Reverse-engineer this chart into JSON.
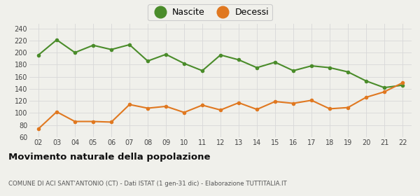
{
  "years": [
    "02",
    "03",
    "04",
    "05",
    "06",
    "07",
    "08",
    "09",
    "10",
    "11",
    "12",
    "13",
    "14",
    "15",
    "16",
    "17",
    "18",
    "19",
    "20",
    "21",
    "22"
  ],
  "nascite": [
    196,
    221,
    200,
    212,
    205,
    213,
    186,
    197,
    182,
    170,
    196,
    188,
    175,
    184,
    170,
    178,
    175,
    168,
    153,
    142,
    146
  ],
  "decessi": [
    74,
    102,
    86,
    86,
    85,
    114,
    108,
    111,
    101,
    113,
    105,
    117,
    106,
    119,
    116,
    121,
    107,
    109,
    126,
    135,
    150
  ],
  "nascite_color": "#4a8c2a",
  "decessi_color": "#e07820",
  "background_color": "#f0f0eb",
  "grid_color": "#d8d8d8",
  "title": "Movimento naturale della popolazione",
  "subtitle": "COMUNE DI ACI SANT'ANTONIO (CT) - Dati ISTAT (1 gen-31 dic) - Elaborazione TUTTITALIA.IT",
  "legend_nascite": "Nascite",
  "legend_decessi": "Decessi",
  "ylim": [
    60,
    248
  ],
  "yticks": [
    60,
    80,
    100,
    120,
    140,
    160,
    180,
    200,
    220,
    240
  ],
  "marker_size": 4,
  "line_width": 1.5,
  "legend_marker_size": 12
}
